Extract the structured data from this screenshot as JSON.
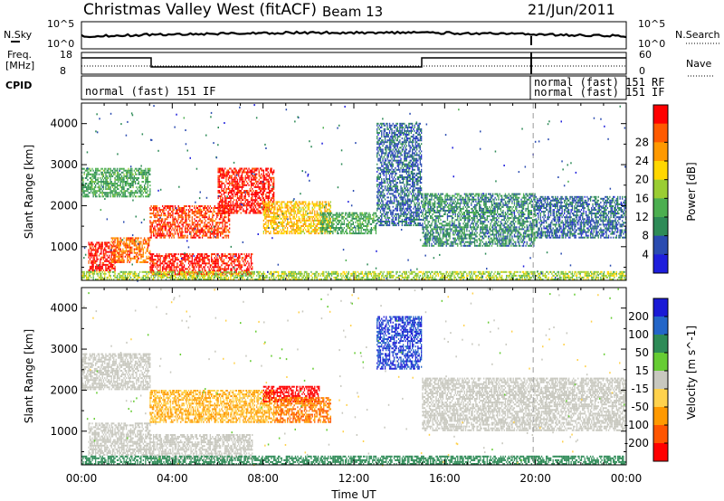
{
  "header": {
    "title": "Christmas Valley West (fitACF)",
    "beam": "Beam 13",
    "date": "21/Jun/2011"
  },
  "top_panels": {
    "nsky_label": "N.Sky",
    "nsky_ticks": [
      "10^5",
      "10^0"
    ],
    "nsearch_label": "N.Search",
    "nsearch_ticks": [
      "10^5",
      "10^0"
    ],
    "freq_label_1": "Freq.",
    "freq_label_2": "[MHz]",
    "freq_ticks": [
      "18",
      "8"
    ],
    "nave_label": "Nave",
    "nave_ticks": [
      "60",
      "0"
    ],
    "cpid_label": "CPID",
    "cpid_entries": [
      "normal (fast) 151 IF",
      "normal (fast) 151 RF",
      "normal (fast) 151 IF"
    ]
  },
  "colors": {
    "power_scale": [
      "#1e1edc",
      "#2a4bb0",
      "#2e8b57",
      "#4caf50",
      "#9acd32",
      "#ffd700",
      "#ff9900",
      "#ff5a00",
      "#ff0000"
    ],
    "velocity_scale": [
      "#1a1ad6",
      "#2466c8",
      "#2e8b57",
      "#66cc33",
      "#c8c8bf",
      "#ffd24d",
      "#ff9900",
      "#ff5500",
      "#ff0000"
    ]
  },
  "chart_data": [
    {
      "type": "heatmap",
      "name": "Power",
      "xlabel": "Time UT",
      "ylabel": "Slant Range [km]",
      "x_ticks": [
        "00:00",
        "04:00",
        "08:00",
        "12:00",
        "16:00",
        "20:00",
        "00:00"
      ],
      "y_ticks": [
        1000,
        2000,
        3000,
        4000
      ],
      "xlim_hours": [
        0,
        24
      ],
      "ylim_km": [
        180,
        4500
      ],
      "colorbar_label": "Power [dB]",
      "colorbar_ticks": [
        4,
        8,
        12,
        16,
        20,
        24,
        28
      ],
      "regions": [
        {
          "t0": 0.0,
          "t1": 3.0,
          "r0": 2200,
          "r1": 2900,
          "value": 12
        },
        {
          "t0": 0.3,
          "t1": 1.5,
          "r0": 400,
          "r1": 1100,
          "value": 28
        },
        {
          "t0": 1.3,
          "t1": 3.0,
          "r0": 600,
          "r1": 1200,
          "value": 24
        },
        {
          "t0": 3.0,
          "t1": 6.5,
          "r0": 1200,
          "r1": 2000,
          "value": 26
        },
        {
          "t0": 3.0,
          "t1": 7.5,
          "r0": 300,
          "r1": 800,
          "value": 28
        },
        {
          "t0": 6.0,
          "t1": 8.5,
          "r0": 1800,
          "r1": 2900,
          "value": 28
        },
        {
          "t0": 8.0,
          "t1": 11.0,
          "r0": 1300,
          "r1": 2100,
          "value": 20
        },
        {
          "t0": 10.5,
          "t1": 13.0,
          "r0": 1300,
          "r1": 1800,
          "value": 12
        },
        {
          "t0": 13.0,
          "t1": 15.0,
          "r0": 1500,
          "r1": 4000,
          "value": 8
        },
        {
          "t0": 15.0,
          "t1": 20.0,
          "r0": 1000,
          "r1": 2300,
          "value": 10
        },
        {
          "t0": 20.0,
          "t1": 24.0,
          "r0": 1200,
          "r1": 2200,
          "value": 8
        },
        {
          "t0": 0.0,
          "t1": 24.0,
          "r0": 180,
          "r1": 400,
          "value": 16
        }
      ]
    },
    {
      "type": "heatmap",
      "name": "Velocity",
      "xlabel": "Time UT",
      "ylabel": "Slant Range [km]",
      "x_ticks": [
        "00:00",
        "04:00",
        "08:00",
        "12:00",
        "16:00",
        "20:00",
        "00:00"
      ],
      "y_ticks": [
        1000,
        2000,
        3000,
        4000
      ],
      "xlim_hours": [
        0,
        24
      ],
      "ylim_km": [
        180,
        4500
      ],
      "colorbar_label": "Velocity [m s^-1]",
      "colorbar_ticks": [
        200,
        100,
        50,
        15,
        -15,
        -50,
        -100,
        -200
      ],
      "regions": [
        {
          "t0": 0.0,
          "t1": 3.0,
          "r0": 2000,
          "r1": 2900,
          "value": 0
        },
        {
          "t0": 0.3,
          "t1": 3.0,
          "r0": 400,
          "r1": 1200,
          "value": 0
        },
        {
          "t0": 3.0,
          "t1": 8.5,
          "r0": 1200,
          "r1": 2000,
          "value": -50
        },
        {
          "t0": 3.0,
          "t1": 7.5,
          "r0": 300,
          "r1": 900,
          "value": 0
        },
        {
          "t0": 8.0,
          "t1": 10.5,
          "r0": 1700,
          "r1": 2100,
          "value": -200
        },
        {
          "t0": 8.5,
          "t1": 11.0,
          "r0": 1200,
          "r1": 1800,
          "value": -100
        },
        {
          "t0": 13.0,
          "t1": 15.0,
          "r0": 2500,
          "r1": 3800,
          "value": 150
        },
        {
          "t0": 15.0,
          "t1": 24.0,
          "r0": 1000,
          "r1": 2300,
          "value": 0
        },
        {
          "t0": 0.0,
          "t1": 24.0,
          "r0": 180,
          "r1": 400,
          "value": 60
        }
      ]
    }
  ]
}
